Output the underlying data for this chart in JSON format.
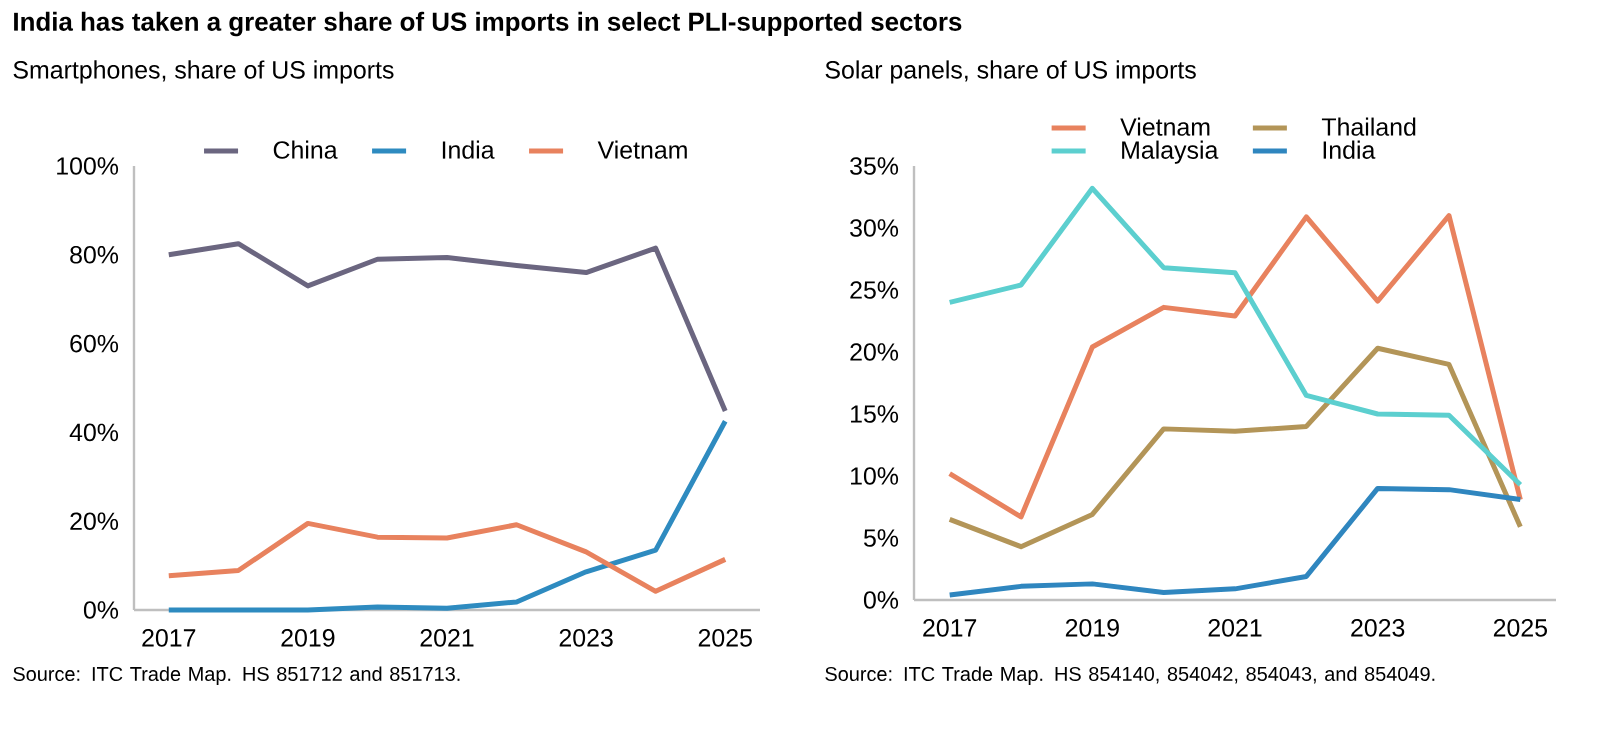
{
  "chart_data": [
    {
      "type": "line",
      "title": "India has taken a greater share of US imports in select PLI-supported sectors",
      "subtitle": "Smartphones, share of US imports",
      "x": [
        2017,
        2018,
        2019,
        2020,
        2021,
        2022,
        2023,
        2024,
        2025
      ],
      "xlim": [
        2016.5,
        2025.5
      ],
      "xticks": [
        2017,
        2019,
        2021,
        2023,
        2025
      ],
      "ylim": [
        0,
        100
      ],
      "yticks": [
        {
          "value": 0,
          "label": "0%"
        },
        {
          "value": 20,
          "label": "20%"
        },
        {
          "value": 40,
          "label": "40%"
        },
        {
          "value": 60,
          "label": "60%"
        },
        {
          "value": 80,
          "label": "80%"
        },
        {
          "value": 100,
          "label": "100%"
        }
      ],
      "legend": "top",
      "series": [
        {
          "name": "China",
          "color": "#6b6680",
          "values": [
            80,
            82.5,
            73,
            79,
            79.4,
            77.6,
            76,
            81.5,
            44.8
          ]
        },
        {
          "name": "India",
          "color": "#2e8bc0",
          "values": [
            0,
            0,
            0,
            0.7,
            0.4,
            1.8,
            8.6,
            13.5,
            42.5
          ]
        },
        {
          "name": "Vietnam",
          "color": "#e8825e",
          "values": [
            7.7,
            8.9,
            19.5,
            16.4,
            16.2,
            19.2,
            13.1,
            4.2,
            11.4
          ]
        }
      ],
      "annotations": [
        "Source: ITC Trade Map. HS 851712 and 851713."
      ]
    },
    {
      "type": "line",
      "title": "Solar panels, share of US imports",
      "x": [
        2017,
        2018,
        2019,
        2020,
        2021,
        2022,
        2023,
        2024,
        2025
      ],
      "xlim": [
        2016.5,
        2025.5
      ],
      "xticks": [
        2017,
        2019,
        2021,
        2023,
        2025
      ],
      "ylim": [
        0,
        35
      ],
      "yticks": [
        {
          "value": 0,
          "label": "0%"
        },
        {
          "value": 5,
          "label": "5%"
        },
        {
          "value": 10,
          "label": "10%"
        },
        {
          "value": 15,
          "label": "15%"
        },
        {
          "value": 20,
          "label": "20%"
        },
        {
          "value": 25,
          "label": "25%"
        },
        {
          "value": 30,
          "label": "30%"
        },
        {
          "value": 35,
          "label": "35%"
        }
      ],
      "legend": "top",
      "series": [
        {
          "name": "Vietnam",
          "color": "#e8825e",
          "values": [
            10.2,
            6.7,
            20.4,
            23.6,
            22.9,
            30.9,
            24.1,
            31,
            8.1
          ]
        },
        {
          "name": "Thailand",
          "color": "#b39558",
          "values": [
            6.5,
            4.3,
            6.9,
            13.8,
            13.6,
            14.0,
            20.3,
            19.0,
            5.9
          ]
        },
        {
          "name": "Malaysia",
          "color": "#5ccfcf",
          "values": [
            24,
            25.4,
            33.2,
            26.8,
            26.4,
            16.5,
            15.0,
            14.9,
            9.3
          ]
        },
        {
          "name": "India",
          "color": "#2f86bf",
          "values": [
            0.4,
            1.1,
            1.3,
            0.6,
            0.9,
            1.9,
            9.0,
            8.9,
            8.1
          ]
        }
      ],
      "annotations": [
        "Source: ITC Trade Map. HS 854140, 854042, 854043, and 854049."
      ]
    }
  ]
}
